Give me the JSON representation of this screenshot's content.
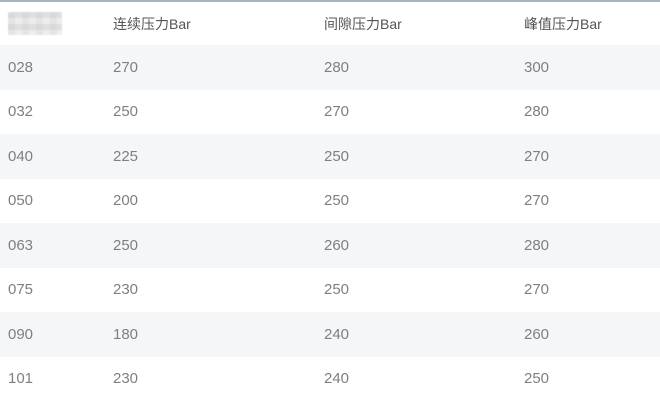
{
  "page": {
    "top_border_color": "#a2b7bf",
    "row_stripe_color": "#f5f6f7",
    "header_text_color": "#555555",
    "cell_text_color": "#7f7f7f"
  },
  "table": {
    "first_header_censored": true,
    "columns": [
      "",
      "连续压力Bar",
      "间隙压力Bar",
      "峰值压力Bar"
    ],
    "rows": [
      [
        "028",
        "270",
        "280",
        "300"
      ],
      [
        "032",
        "250",
        "270",
        "280"
      ],
      [
        "040",
        "225",
        "250",
        "270"
      ],
      [
        "050",
        "200",
        "250",
        "270"
      ],
      [
        "063",
        "250",
        "260",
        "280"
      ],
      [
        "075",
        "230",
        "250",
        "270"
      ],
      [
        "090",
        "180",
        "240",
        "260"
      ],
      [
        "101",
        "230",
        "240",
        "250"
      ]
    ]
  },
  "chart_data": {
    "type": "table",
    "title": "",
    "columns": [
      "",
      "连续压力Bar",
      "间隙压力Bar",
      "峰值压力Bar"
    ],
    "rows": [
      [
        "028",
        270,
        280,
        300
      ],
      [
        "032",
        250,
        270,
        280
      ],
      [
        "040",
        225,
        250,
        270
      ],
      [
        "050",
        200,
        250,
        270
      ],
      [
        "063",
        250,
        260,
        280
      ],
      [
        "075",
        230,
        250,
        270
      ],
      [
        "090",
        180,
        240,
        260
      ],
      [
        "101",
        230,
        240,
        250
      ]
    ]
  }
}
